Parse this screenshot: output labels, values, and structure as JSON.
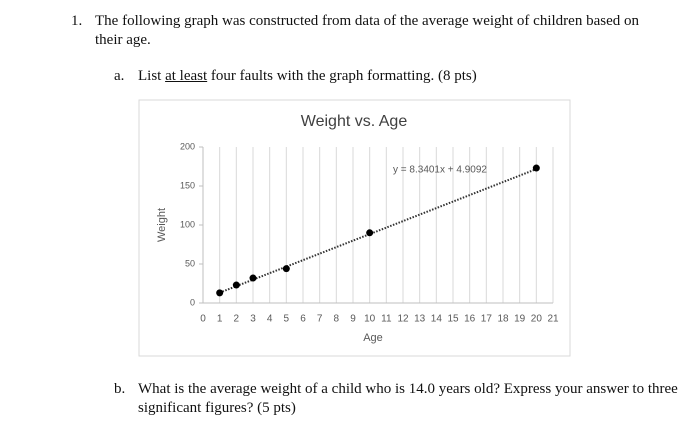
{
  "question": {
    "number": "1.",
    "text": "The following graph was constructed from data of the average weight of children based on their age."
  },
  "part_a": {
    "label": "a.",
    "text_before": "List ",
    "underlined": "at least",
    "text_after": " four faults with the graph formatting. (8 pts)"
  },
  "part_b": {
    "label": "b.",
    "text": "What is the average weight of a child who is 14.0 years old? Express your answer to three significant figures? (5 pts)"
  },
  "chart_data": {
    "type": "scatter",
    "title": "Weight vs. Age",
    "x_label": "Age",
    "y_label": "Weight",
    "x": [
      1,
      2,
      3,
      5,
      10,
      20
    ],
    "y": [
      13,
      23,
      32,
      44,
      90,
      173
    ],
    "color": "#000000",
    "xlim": [
      0,
      21
    ],
    "xticks": [
      0,
      1,
      2,
      3,
      4,
      5,
      6,
      7,
      8,
      9,
      10,
      11,
      12,
      13,
      14,
      15,
      16,
      17,
      18,
      19,
      20,
      21
    ],
    "ylim": [
      0,
      200
    ],
    "yticks": [
      0,
      50,
      100,
      150,
      200
    ],
    "grid": true,
    "trendline": {
      "slope": 8.3401,
      "intercept": 4.9092,
      "label": "y = 8.3401x + 4.9092"
    }
  }
}
